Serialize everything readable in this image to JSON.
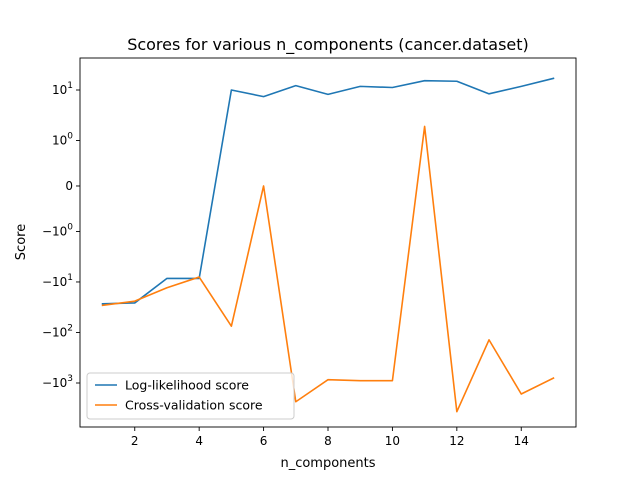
{
  "chart_data": {
    "type": "line",
    "title": "Scores for various n_components (cancer.dataset)",
    "xlabel": "n_components",
    "ylabel": "Score",
    "yscale": "symlog",
    "xlim": [
      0.3,
      15.7
    ],
    "x": [
      1,
      2,
      3,
      4,
      5,
      6,
      7,
      8,
      9,
      10,
      11,
      12,
      13,
      14,
      15
    ],
    "xticks": [
      2,
      4,
      6,
      8,
      10,
      12,
      14
    ],
    "yticks": [
      {
        "value": 10,
        "base": "10",
        "exp": "1"
      },
      {
        "value": 1,
        "base": "10",
        "exp": "0"
      },
      {
        "value": 0,
        "base": "0",
        "exp": ""
      },
      {
        "value": -1,
        "base": "−10",
        "exp": "0"
      },
      {
        "value": -10,
        "base": "−10",
        "exp": "1"
      },
      {
        "value": -100,
        "base": "−10",
        "exp": "2"
      },
      {
        "value": -1000,
        "base": "−10",
        "exp": "3"
      }
    ],
    "series": [
      {
        "name": "Log-likelihood score",
        "color": "#1f77b4",
        "values": [
          -27,
          -26,
          -8.5,
          -8.5,
          10,
          7.4,
          12.2,
          8.2,
          11.8,
          11.2,
          15.3,
          14.9,
          8.4,
          11.8,
          17
        ]
      },
      {
        "name": "Cross-validation score",
        "color": "#ff7f0e",
        "values": [
          -29,
          -24,
          -13,
          -8,
          -75,
          0,
          -2350,
          -860,
          -900,
          -900,
          1.9,
          -3700,
          -140,
          -1650,
          -800
        ]
      }
    ],
    "legend": "lower-left",
    "grid": false
  }
}
